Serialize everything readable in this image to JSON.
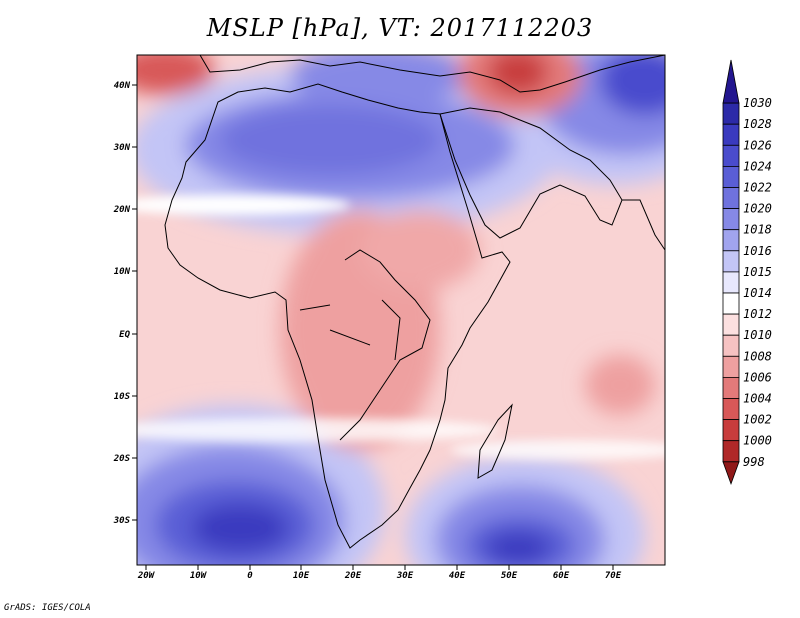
{
  "title": "MSLP [hPa], VT: 2017112203",
  "credit": "GrADS: IGES/COLA",
  "map": {
    "lat_labels": [
      "40N",
      "30N",
      "20N",
      "10N",
      "EQ",
      "10S",
      "20S",
      "30S"
    ],
    "lon_labels": [
      "20W",
      "10W",
      "0",
      "10E",
      "20E",
      "30E",
      "40E",
      "50E",
      "60E",
      "70E"
    ]
  },
  "colorbar": {
    "levels": [
      "1030",
      "1028",
      "1026",
      "1024",
      "1022",
      "1020",
      "1018",
      "1016",
      "1015",
      "1014",
      "1012",
      "1010",
      "1008",
      "1006",
      "1004",
      "1002",
      "1000",
      "998"
    ],
    "colors": [
      "#23168f",
      "#2c2aa8",
      "#3a3abf",
      "#4a4ccd",
      "#5a5ed6",
      "#6f72de",
      "#8689e6",
      "#a1a4ee",
      "#c3c5f6",
      "#e8e8fd",
      "#ffffff",
      "#fce0e0",
      "#f6c2c2",
      "#eea0a0",
      "#e37a7a",
      "#d85858",
      "#c83c3c",
      "#b02828",
      "#901818"
    ]
  },
  "colors": {
    "high": "#3a3abf",
    "low": "#d85858",
    "neutral": "#ffffff",
    "land": "#000000"
  }
}
